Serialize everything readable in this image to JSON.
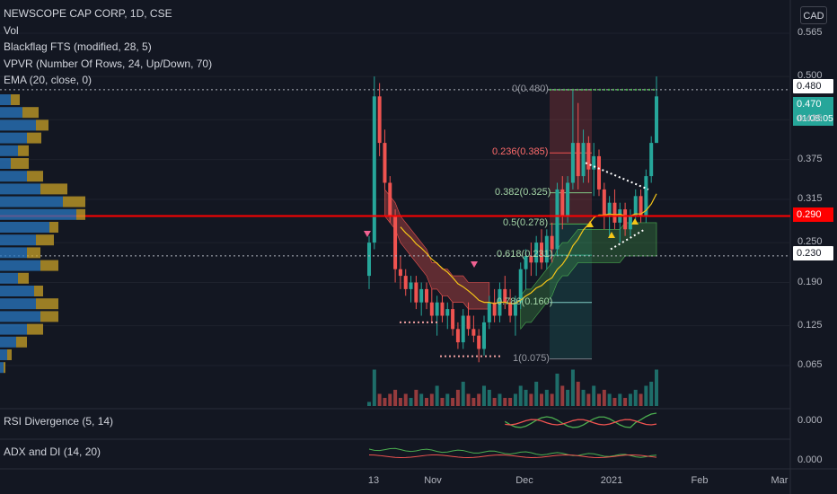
{
  "header": {
    "title": "NEWSCOPE CAP CORP, 1D, CSE",
    "indicators": [
      "Vol",
      "Blackflag FTS (modified, 28, 5)",
      "VPVR (Number Of Rows, 24, Up/Down, 70)",
      "EMA (20, close, 0)"
    ],
    "currency": "CAD"
  },
  "price_tags": {
    "top": "0.480",
    "last": "0.470",
    "countdown": "01:08:05",
    "red_line": "0.290",
    "dotted_line": "0.230"
  },
  "panes": {
    "rsi": {
      "label": "RSI Divergence (5, 14)",
      "scale": "0.000"
    },
    "adx": {
      "label": "ADX and DI (14, 20)",
      "scale": "0.000"
    }
  },
  "colors": {
    "up": "#26a69a",
    "down": "#ef5350",
    "red_line": "#ff0000",
    "ema": "#f5c518",
    "vpvr_up": "#2a78c2",
    "vpvr_down": "#c9a227"
  },
  "chart_data": {
    "type": "candlestick",
    "y_ticks": [
      "0.565",
      "0.500",
      "0.435",
      "0.375",
      "0.315",
      "0.250",
      "0.190",
      "0.125",
      "0.065"
    ],
    "x_ticks": [
      "13",
      "Nov",
      "Dec",
      "2021",
      "Feb",
      "Mar"
    ],
    "fib_levels": [
      {
        "ratio": "0",
        "label": "0(0.480)",
        "value": 0.48
      },
      {
        "ratio": "0.236",
        "label": "0.236(0.385)",
        "value": 0.385
      },
      {
        "ratio": "0.382",
        "label": "0.382(0.325)",
        "value": 0.325
      },
      {
        "ratio": "0.5",
        "label": "0.5(0.278)",
        "value": 0.278
      },
      {
        "ratio": "0.618",
        "label": "0.618(0.231)",
        "value": 0.231
      },
      {
        "ratio": "0.786",
        "label": "0.786(0.160)",
        "value": 0.16
      },
      {
        "ratio": "1",
        "label": "1(0.075)",
        "value": 0.075
      }
    ],
    "candles": [
      {
        "o": 0.2,
        "h": 0.26,
        "l": 0.18,
        "c": 0.25
      },
      {
        "o": 0.25,
        "h": 0.5,
        "l": 0.24,
        "c": 0.47
      },
      {
        "o": 0.47,
        "h": 0.49,
        "l": 0.38,
        "c": 0.4
      },
      {
        "o": 0.4,
        "h": 0.42,
        "l": 0.33,
        "c": 0.34
      },
      {
        "o": 0.34,
        "h": 0.35,
        "l": 0.28,
        "c": 0.29
      },
      {
        "o": 0.29,
        "h": 0.3,
        "l": 0.19,
        "c": 0.21
      },
      {
        "o": 0.21,
        "h": 0.23,
        "l": 0.18,
        "c": 0.2
      },
      {
        "o": 0.2,
        "h": 0.21,
        "l": 0.17,
        "c": 0.18
      },
      {
        "o": 0.18,
        "h": 0.2,
        "l": 0.16,
        "c": 0.19
      },
      {
        "o": 0.19,
        "h": 0.2,
        "l": 0.15,
        "c": 0.16
      },
      {
        "o": 0.16,
        "h": 0.19,
        "l": 0.14,
        "c": 0.18
      },
      {
        "o": 0.18,
        "h": 0.19,
        "l": 0.15,
        "c": 0.16
      },
      {
        "o": 0.16,
        "h": 0.18,
        "l": 0.13,
        "c": 0.14
      },
      {
        "o": 0.14,
        "h": 0.17,
        "l": 0.11,
        "c": 0.16
      },
      {
        "o": 0.16,
        "h": 0.17,
        "l": 0.13,
        "c": 0.14
      },
      {
        "o": 0.14,
        "h": 0.16,
        "l": 0.12,
        "c": 0.15
      },
      {
        "o": 0.15,
        "h": 0.16,
        "l": 0.11,
        "c": 0.12
      },
      {
        "o": 0.12,
        "h": 0.13,
        "l": 0.09,
        "c": 0.1
      },
      {
        "o": 0.1,
        "h": 0.15,
        "l": 0.09,
        "c": 0.14
      },
      {
        "o": 0.14,
        "h": 0.16,
        "l": 0.11,
        "c": 0.12
      },
      {
        "o": 0.12,
        "h": 0.14,
        "l": 0.1,
        "c": 0.11
      },
      {
        "o": 0.11,
        "h": 0.12,
        "l": 0.07,
        "c": 0.09
      },
      {
        "o": 0.09,
        "h": 0.14,
        "l": 0.08,
        "c": 0.13
      },
      {
        "o": 0.13,
        "h": 0.17,
        "l": 0.12,
        "c": 0.16
      },
      {
        "o": 0.16,
        "h": 0.18,
        "l": 0.13,
        "c": 0.14
      },
      {
        "o": 0.14,
        "h": 0.19,
        "l": 0.13,
        "c": 0.18
      },
      {
        "o": 0.18,
        "h": 0.2,
        "l": 0.15,
        "c": 0.16
      },
      {
        "o": 0.16,
        "h": 0.18,
        "l": 0.13,
        "c": 0.14
      },
      {
        "o": 0.14,
        "h": 0.17,
        "l": 0.11,
        "c": 0.16
      },
      {
        "o": 0.16,
        "h": 0.22,
        "l": 0.15,
        "c": 0.21
      },
      {
        "o": 0.21,
        "h": 0.24,
        "l": 0.18,
        "c": 0.23
      },
      {
        "o": 0.23,
        "h": 0.25,
        "l": 0.2,
        "c": 0.22
      },
      {
        "o": 0.22,
        "h": 0.26,
        "l": 0.2,
        "c": 0.25
      },
      {
        "o": 0.25,
        "h": 0.27,
        "l": 0.21,
        "c": 0.22
      },
      {
        "o": 0.22,
        "h": 0.27,
        "l": 0.21,
        "c": 0.26
      },
      {
        "o": 0.26,
        "h": 0.28,
        "l": 0.22,
        "c": 0.24
      },
      {
        "o": 0.24,
        "h": 0.34,
        "l": 0.23,
        "c": 0.33
      },
      {
        "o": 0.33,
        "h": 0.35,
        "l": 0.27,
        "c": 0.29
      },
      {
        "o": 0.29,
        "h": 0.35,
        "l": 0.28,
        "c": 0.34
      },
      {
        "o": 0.34,
        "h": 0.48,
        "l": 0.33,
        "c": 0.4
      },
      {
        "o": 0.4,
        "h": 0.46,
        "l": 0.33,
        "c": 0.35
      },
      {
        "o": 0.35,
        "h": 0.42,
        "l": 0.34,
        "c": 0.4
      },
      {
        "o": 0.4,
        "h": 0.41,
        "l": 0.34,
        "c": 0.36
      },
      {
        "o": 0.36,
        "h": 0.4,
        "l": 0.32,
        "c": 0.38
      },
      {
        "o": 0.38,
        "h": 0.39,
        "l": 0.32,
        "c": 0.33
      },
      {
        "o": 0.33,
        "h": 0.34,
        "l": 0.27,
        "c": 0.29
      },
      {
        "o": 0.29,
        "h": 0.32,
        "l": 0.26,
        "c": 0.31
      },
      {
        "o": 0.31,
        "h": 0.33,
        "l": 0.27,
        "c": 0.28
      },
      {
        "o": 0.28,
        "h": 0.31,
        "l": 0.25,
        "c": 0.3
      },
      {
        "o": 0.3,
        "h": 0.31,
        "l": 0.26,
        "c": 0.27
      },
      {
        "o": 0.27,
        "h": 0.3,
        "l": 0.26,
        "c": 0.29
      },
      {
        "o": 0.29,
        "h": 0.33,
        "l": 0.28,
        "c": 0.32
      },
      {
        "o": 0.32,
        "h": 0.33,
        "l": 0.28,
        "c": 0.29
      },
      {
        "o": 0.29,
        "h": 0.36,
        "l": 0.28,
        "c": 0.35
      },
      {
        "o": 0.35,
        "h": 0.41,
        "l": 0.34,
        "c": 0.4
      },
      {
        "o": 0.4,
        "h": 0.5,
        "l": 0.4,
        "c": 0.47
      }
    ],
    "volume": [
      0.1,
      0.9,
      0.3,
      0.2,
      0.3,
      0.4,
      0.2,
      0.3,
      0.2,
      0.4,
      0.3,
      0.2,
      0.3,
      0.5,
      0.2,
      0.3,
      0.2,
      0.4,
      0.6,
      0.3,
      0.2,
      0.3,
      0.5,
      0.4,
      0.2,
      0.3,
      0.2,
      0.2,
      0.3,
      0.5,
      0.4,
      0.3,
      0.6,
      0.3,
      0.4,
      0.3,
      0.8,
      0.5,
      0.4,
      0.9,
      0.6,
      0.4,
      0.3,
      0.5,
      0.3,
      0.4,
      0.3,
      0.2,
      0.3,
      0.2,
      0.3,
      0.4,
      0.3,
      0.5,
      0.6,
      0.9
    ]
  }
}
